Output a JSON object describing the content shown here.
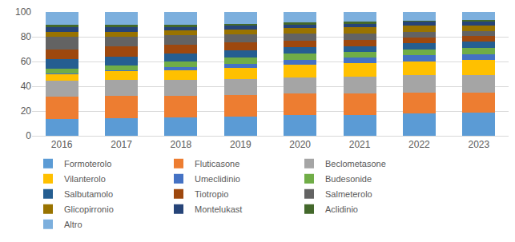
{
  "chart_data": {
    "type": "bar",
    "stacked": true,
    "grid": true,
    "legend": "bottom",
    "categories": [
      "2016",
      "2017",
      "2018",
      "2019",
      "2020",
      "2021",
      "2022",
      "2023"
    ],
    "ylim": [
      0,
      100
    ],
    "yticks": [
      0,
      20,
      40,
      60,
      80,
      100
    ],
    "series": [
      {
        "name": "Formoterolo",
        "color": "#5B9BD5",
        "values": [
          13.5,
          14,
          15,
          15.5,
          16.5,
          17,
          18,
          18.5
        ]
      },
      {
        "name": "Fluticasone",
        "color": "#ED7D31",
        "values": [
          18,
          18,
          17.5,
          17.5,
          18,
          17.5,
          17,
          16.5
        ]
      },
      {
        "name": "Beclometasone",
        "color": "#A5A5A5",
        "values": [
          13,
          13,
          12.5,
          12.5,
          12.5,
          13,
          14,
          14
        ]
      },
      {
        "name": "Vilanterolo",
        "color": "#FFC000",
        "values": [
          5,
          7,
          8,
          9.5,
          10.5,
          11,
          11,
          12.5
        ]
      },
      {
        "name": "Umeclidinio",
        "color": "#4472C4",
        "values": [
          1,
          1,
          2.5,
          3,
          4,
          4.5,
          5,
          4.5
        ]
      },
      {
        "name": "Budesonide",
        "color": "#70AD47",
        "values": [
          4,
          4,
          4.5,
          5,
          5,
          5,
          5,
          5
        ]
      },
      {
        "name": "Salbutamolo",
        "color": "#255E91",
        "values": [
          7.5,
          7,
          6.5,
          6,
          5,
          4.5,
          5,
          5
        ]
      },
      {
        "name": "Tiotropio",
        "color": "#9E480E",
        "values": [
          8,
          8,
          7,
          6.5,
          5.5,
          5,
          4.5,
          4.5
        ]
      },
      {
        "name": "Salmeterolo",
        "color": "#636363",
        "values": [
          10,
          8,
          7.5,
          6.5,
          5.5,
          5,
          4.5,
          4
        ]
      },
      {
        "name": "Glicopirronio",
        "color": "#997300",
        "values": [
          4,
          4,
          4,
          4,
          4.5,
          5,
          5,
          4.5
        ]
      },
      {
        "name": "Montelukast",
        "color": "#264478",
        "values": [
          3.5,
          3.5,
          3,
          3,
          3,
          3,
          3,
          3.5
        ]
      },
      {
        "name": "Aclidinio",
        "color": "#43682B",
        "values": [
          2,
          2,
          2,
          1.5,
          1.5,
          1.5,
          1,
          1
        ]
      },
      {
        "name": "Altro",
        "color": "#7CAFDD",
        "values": [
          10.5,
          10.5,
          10,
          9.5,
          8.5,
          8,
          7,
          6.5
        ]
      }
    ]
  }
}
